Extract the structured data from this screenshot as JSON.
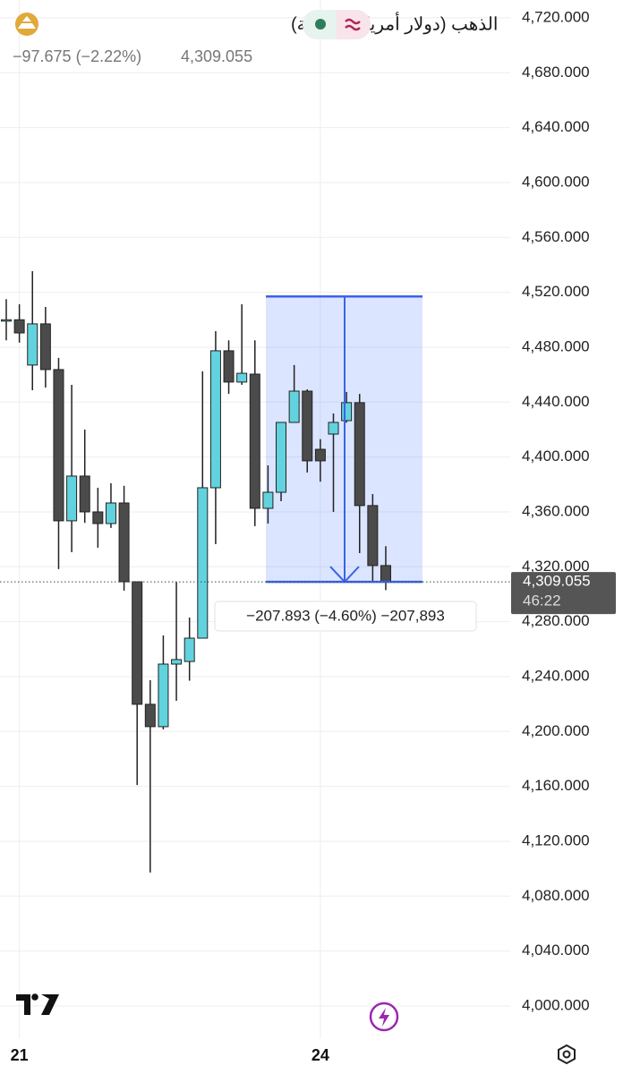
{
  "header": {
    "title": "الذهب (دولار أمريكي/أونصة)",
    "change": "−97.675 (−2.22%)",
    "price": "4,309.055"
  },
  "chart_data": {
    "type": "candlestick",
    "categories": [
      null,
      "21",
      null,
      null,
      null,
      null,
      null,
      null,
      null,
      null,
      null,
      null,
      null,
      null,
      null,
      null,
      null,
      null,
      null,
      null,
      null,
      null,
      null,
      null,
      "24",
      null,
      null,
      null,
      null,
      null
    ],
    "open": [
      4499,
      4500,
      4467,
      4497,
      4463.7,
      4353.5,
      4386.1,
      4360,
      4351.5,
      4366.5,
      4309.1,
      4219.8,
      4203.5,
      4249.1,
      4251,
      4268,
      4377.6,
      4477.4,
      4454.6,
      4460.4,
      4362.6,
      4374.3,
      4425.2,
      4448,
      4405.6,
      4416.7,
      4426.5,
      4439.6,
      4364.6,
      4320.9
    ],
    "high": [
      4515,
      4511.3,
      4535.4,
      4509.3,
      4472.2,
      4452.6,
      4420,
      4377.6,
      4380.9,
      4379,
      4309.1,
      4237.4,
      4270,
      4309,
      4283,
      4462.4,
      4491.7,
      4485,
      4511.3,
      4485,
      4393.9,
      4425.2,
      4467,
      4449.3,
      4413,
      4431.7,
      4447.4,
      4446,
      4373,
      4335
    ],
    "low": [
      4485,
      4483.3,
      4448.7,
      4450.6,
      4318.3,
      4330.6,
      4352,
      4333.9,
      4348.3,
      4302.6,
      4161,
      4097.2,
      4201.5,
      4222.4,
      4237,
      4268,
      4336.5,
      4446,
      4452.6,
      4349.6,
      4351.5,
      4367.8,
      4425,
      4388.7,
      4382,
      4360,
      4425,
      4330,
      4309,
      4303
    ],
    "close": [
      4500,
      4490.4,
      4497,
      4463.7,
      4353.5,
      4386.1,
      4360,
      4351.5,
      4366.5,
      4309.1,
      4219.8,
      4203.5,
      4249.1,
      4252.4,
      4268,
      4377.6,
      4477.4,
      4454.6,
      4461,
      4362.6,
      4374.3,
      4425.2,
      4448,
      4397.2,
      4397.2,
      4425.2,
      4439.6,
      4364.6,
      4320.9,
      4309.055
    ],
    "up_color": "#62d2df",
    "down_color": "#4b4b4b",
    "ylim": [
      3975,
      4733
    ],
    "yticks": [
      {
        "value": 4000,
        "label": "4,000.000"
      },
      {
        "value": 4040,
        "label": "4,040.000"
      },
      {
        "value": 4080,
        "label": "4,080.000"
      },
      {
        "value": 4120,
        "label": "4,120.000"
      },
      {
        "value": 4160,
        "label": "4,160.000"
      },
      {
        "value": 4200,
        "label": "4,200.000"
      },
      {
        "value": 4240,
        "label": "4,240.000"
      },
      {
        "value": 4280,
        "label": "4,280.000"
      },
      {
        "value": 4320,
        "label": "4,320.000"
      },
      {
        "value": 4360,
        "label": "4,360.000"
      },
      {
        "value": 4400,
        "label": "4,400.000"
      },
      {
        "value": 4440,
        "label": "4,440.000"
      },
      {
        "value": 4480,
        "label": "4,480.000"
      },
      {
        "value": 4520,
        "label": "4,520.000"
      },
      {
        "value": 4560,
        "label": "4,560.000"
      },
      {
        "value": 4600,
        "label": "4,600.000"
      },
      {
        "value": 4640,
        "label": "4,640.000"
      },
      {
        "value": 4680,
        "label": "4,680.000"
      },
      {
        "value": 4720,
        "label": "4,720.000"
      }
    ],
    "grid": true,
    "last_price": {
      "value": 4309.055,
      "label": "4,309.055"
    },
    "countdown": "46:22",
    "measure": {
      "from": 4516.948,
      "to": 4309.055,
      "label": "−207.893 (−4.60%) −207,893"
    }
  }
}
